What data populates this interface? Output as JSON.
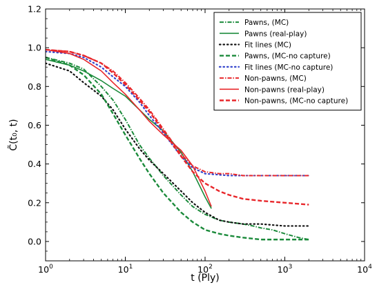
{
  "chart_data": {
    "type": "line",
    "xlabel": "t (Ply)",
    "ylabel": "C̃(t₀, t)",
    "x_scale": "log",
    "xlim": [
      1,
      10000
    ],
    "ylim": [
      -0.1,
      1.2
    ],
    "grid": false,
    "legend_position": "top-right",
    "x_ticks": [
      {
        "value": 1,
        "base": "10",
        "exp": "0"
      },
      {
        "value": 10,
        "base": "10",
        "exp": "1"
      },
      {
        "value": 100,
        "base": "10",
        "exp": "2"
      },
      {
        "value": 1000,
        "base": "10",
        "exp": "3"
      },
      {
        "value": 10000,
        "base": "10",
        "exp": "4"
      }
    ],
    "y_ticks": [
      {
        "value": 0.0,
        "label": "0.0"
      },
      {
        "value": 0.2,
        "label": "0.2"
      },
      {
        "value": 0.4,
        "label": "0.4"
      },
      {
        "value": 0.6,
        "label": "0.6"
      },
      {
        "value": 0.8,
        "label": "0.8"
      },
      {
        "value": 1.0,
        "label": "1.0"
      },
      {
        "value": 1.2,
        "label": "1.2"
      }
    ],
    "series": [
      {
        "name": "Pawns, (MC)",
        "color": "#1a8a3a",
        "style": "dashdot",
        "points": [
          [
            1,
            0.95
          ],
          [
            2,
            0.92
          ],
          [
            3,
            0.89
          ],
          [
            5,
            0.8
          ],
          [
            7,
            0.73
          ],
          [
            10,
            0.63
          ],
          [
            15,
            0.5
          ],
          [
            20,
            0.43
          ],
          [
            30,
            0.34
          ],
          [
            50,
            0.24
          ],
          [
            70,
            0.18
          ],
          [
            100,
            0.14
          ],
          [
            150,
            0.11
          ],
          [
            200,
            0.1
          ],
          [
            300,
            0.09
          ],
          [
            400,
            0.08
          ],
          [
            500,
            0.07
          ],
          [
            700,
            0.06
          ],
          [
            1000,
            0.04
          ],
          [
            1500,
            0.02
          ],
          [
            2000,
            0.01
          ]
        ]
      },
      {
        "name": "Pawns (real-play)",
        "color": "#1a8a3a",
        "style": "solid",
        "points": [
          [
            1,
            0.94
          ],
          [
            2,
            0.91
          ],
          [
            3,
            0.88
          ],
          [
            5,
            0.83
          ],
          [
            7,
            0.79
          ],
          [
            10,
            0.75
          ],
          [
            15,
            0.68
          ],
          [
            20,
            0.63
          ],
          [
            30,
            0.57
          ],
          [
            50,
            0.46
          ],
          [
            70,
            0.36
          ],
          [
            100,
            0.23
          ],
          [
            120,
            0.17
          ]
        ]
      },
      {
        "name": "Fit lines (MC)",
        "color": "#111111",
        "style": "dotted",
        "points": [
          [
            1,
            0.92
          ],
          [
            2,
            0.88
          ],
          [
            3,
            0.82
          ],
          [
            5,
            0.75
          ],
          [
            7,
            0.68
          ],
          [
            10,
            0.58
          ],
          [
            15,
            0.48
          ],
          [
            20,
            0.42
          ],
          [
            30,
            0.35
          ],
          [
            50,
            0.26
          ],
          [
            70,
            0.2
          ],
          [
            100,
            0.15
          ],
          [
            150,
            0.11
          ],
          [
            200,
            0.1
          ],
          [
            300,
            0.09
          ],
          [
            500,
            0.09
          ],
          [
            1000,
            0.08
          ],
          [
            2000,
            0.08
          ]
        ]
      },
      {
        "name": "Pawns, (MC-no capture)",
        "color": "#1a8a3a",
        "style": "dashed",
        "points": [
          [
            1,
            0.95
          ],
          [
            2,
            0.91
          ],
          [
            3,
            0.86
          ],
          [
            5,
            0.76
          ],
          [
            7,
            0.66
          ],
          [
            10,
            0.55
          ],
          [
            15,
            0.43
          ],
          [
            20,
            0.35
          ],
          [
            30,
            0.25
          ],
          [
            50,
            0.15
          ],
          [
            70,
            0.1
          ],
          [
            100,
            0.06
          ],
          [
            150,
            0.04
          ],
          [
            200,
            0.03
          ],
          [
            300,
            0.02
          ],
          [
            500,
            0.01
          ],
          [
            1000,
            0.01
          ],
          [
            2000,
            0.01
          ]
        ]
      },
      {
        "name": "Fit lines (MC-no capture)",
        "color": "#3344cc",
        "style": "dotted",
        "points": [
          [
            1,
            0.98
          ],
          [
            2,
            0.97
          ],
          [
            3,
            0.95
          ],
          [
            5,
            0.9
          ],
          [
            7,
            0.85
          ],
          [
            10,
            0.8
          ],
          [
            15,
            0.72
          ],
          [
            20,
            0.65
          ],
          [
            30,
            0.56
          ],
          [
            50,
            0.44
          ],
          [
            70,
            0.38
          ],
          [
            100,
            0.35
          ],
          [
            200,
            0.34
          ],
          [
            500,
            0.34
          ],
          [
            1000,
            0.34
          ],
          [
            2000,
            0.34
          ]
        ]
      },
      {
        "name": "Non-pawns, (MC)",
        "color": "#e8262a",
        "style": "dashdot",
        "points": [
          [
            1,
            0.99
          ],
          [
            2,
            0.98
          ],
          [
            3,
            0.96
          ],
          [
            5,
            0.92
          ],
          [
            7,
            0.88
          ],
          [
            10,
            0.82
          ],
          [
            15,
            0.74
          ],
          [
            20,
            0.68
          ],
          [
            30,
            0.58
          ],
          [
            50,
            0.45
          ],
          [
            70,
            0.39
          ],
          [
            100,
            0.36
          ],
          [
            150,
            0.35
          ],
          [
            200,
            0.35
          ],
          [
            300,
            0.34
          ],
          [
            500,
            0.34
          ],
          [
            1000,
            0.34
          ],
          [
            2000,
            0.34
          ]
        ]
      },
      {
        "name": "Non-pawns (real-play)",
        "color": "#e8262a",
        "style": "solid",
        "points": [
          [
            1,
            0.99
          ],
          [
            2,
            0.97
          ],
          [
            3,
            0.94
          ],
          [
            5,
            0.88
          ],
          [
            7,
            0.82
          ],
          [
            10,
            0.76
          ],
          [
            15,
            0.68
          ],
          [
            20,
            0.62
          ],
          [
            30,
            0.55
          ],
          [
            50,
            0.47
          ],
          [
            70,
            0.39
          ],
          [
            100,
            0.26
          ],
          [
            120,
            0.18
          ]
        ]
      },
      {
        "name": "Non-pawns, (MC-no capture)",
        "color": "#e8262a",
        "style": "dashed",
        "points": [
          [
            1,
            0.99
          ],
          [
            2,
            0.98
          ],
          [
            3,
            0.96
          ],
          [
            5,
            0.92
          ],
          [
            7,
            0.87
          ],
          [
            10,
            0.81
          ],
          [
            15,
            0.73
          ],
          [
            20,
            0.67
          ],
          [
            30,
            0.57
          ],
          [
            50,
            0.44
          ],
          [
            70,
            0.36
          ],
          [
            100,
            0.3
          ],
          [
            150,
            0.26
          ],
          [
            200,
            0.24
          ],
          [
            300,
            0.22
          ],
          [
            500,
            0.21
          ],
          [
            1000,
            0.2
          ],
          [
            2000,
            0.19
          ]
        ]
      }
    ]
  }
}
